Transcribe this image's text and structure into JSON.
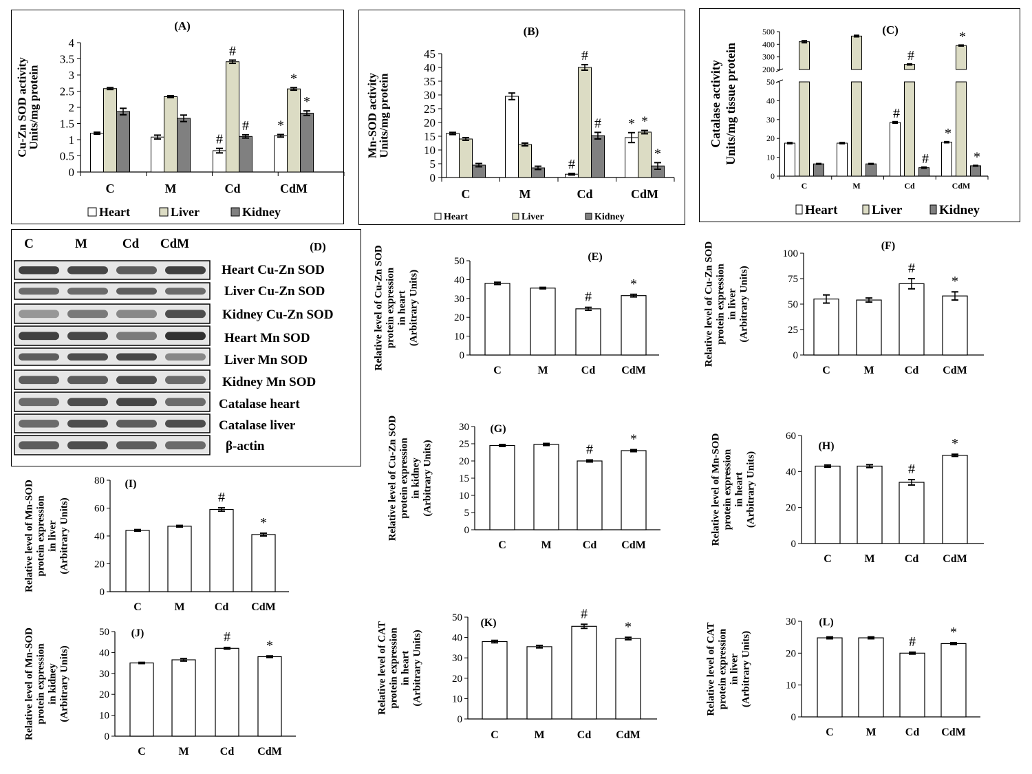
{
  "figure": {
    "group_labels": [
      "C",
      "M",
      "Cd",
      "CdM"
    ],
    "blot": {
      "panel_label": "(D)",
      "lane_labels": [
        "C",
        "M",
        "Cd",
        "CdM"
      ],
      "bands": [
        "Heart Cu-Zn SOD",
        "Liver Cu-Zn SOD",
        "Kidney Cu-Zn SOD",
        "Heart Mn SOD",
        "Liver Mn SOD",
        "Kidney Mn SOD",
        "Catalase heart",
        "Catalase liver",
        "β-actin"
      ]
    }
  },
  "chart_data": [
    {
      "id": "A",
      "panel_label": "(A)",
      "type": "bar",
      "ylabel_lines": [
        "Cu-Zn SOD activity",
        "Units/mg protein"
      ],
      "categories": [
        "C",
        "M",
        "Cd",
        "CdM"
      ],
      "ylim": [
        0,
        4
      ],
      "yticks": [
        "0",
        "0.5",
        "1",
        "1.5",
        "2",
        "2.5",
        "3",
        "3.5",
        "4"
      ],
      "grid": false,
      "legend": "bottom",
      "series": [
        {
          "name": "Heart",
          "color": "#ffffff",
          "values": [
            1.2,
            1.08,
            0.66,
            1.12
          ],
          "errors": [
            0.03,
            0.06,
            0.07,
            0.04
          ],
          "marks": [
            "",
            "",
            "#",
            "*"
          ]
        },
        {
          "name": "Liver",
          "color": "#dcdcc4",
          "values": [
            2.58,
            2.33,
            3.41,
            2.57
          ],
          "errors": [
            0.03,
            0.03,
            0.05,
            0.04
          ],
          "marks": [
            "",
            "",
            "#",
            "*"
          ]
        },
        {
          "name": "Kidney",
          "color": "#808080",
          "values": [
            1.87,
            1.66,
            1.1,
            1.82
          ],
          "errors": [
            0.1,
            0.1,
            0.05,
            0.07
          ],
          "marks": [
            "",
            "",
            "#",
            "*"
          ]
        }
      ]
    },
    {
      "id": "B",
      "panel_label": "(B)",
      "type": "bar",
      "ylabel_lines": [
        "Mn-SOD activity",
        "Units/mg protein"
      ],
      "categories": [
        "C",
        "M",
        "Cd",
        "CdM"
      ],
      "ylim": [
        0,
        45
      ],
      "yticks": [
        "0",
        "5",
        "10",
        "15",
        "20",
        "25",
        "30",
        "35",
        "40",
        "45"
      ],
      "grid": false,
      "legend": "bottom",
      "series": [
        {
          "name": "Heart",
          "color": "#ffffff",
          "values": [
            16,
            29.5,
            1.2,
            14.5
          ],
          "errors": [
            0.4,
            1.2,
            0.3,
            1.8
          ],
          "marks": [
            "",
            "",
            "#",
            "*"
          ]
        },
        {
          "name": "Liver",
          "color": "#dcdcc4",
          "values": [
            14,
            12,
            40,
            16.5
          ],
          "errors": [
            0.5,
            0.5,
            1.0,
            0.6
          ],
          "marks": [
            "",
            "",
            "#",
            "*"
          ]
        },
        {
          "name": "Kidney",
          "color": "#808080",
          "values": [
            4.5,
            3.5,
            15.2,
            4.2
          ],
          "errors": [
            0.6,
            0.6,
            1.2,
            1.2
          ],
          "marks": [
            "",
            "",
            "#",
            "*"
          ]
        }
      ]
    },
    {
      "id": "C",
      "panel_label": "(C)",
      "type": "bar",
      "ylabel_lines": [
        "Catalase activity",
        "Units/mg tissue protein"
      ],
      "categories": [
        "C",
        "M",
        "Cd",
        "CdM"
      ],
      "ylim": [
        0,
        500
      ],
      "broken_axis": {
        "lower": [
          0,
          50
        ],
        "upper": [
          200,
          500
        ]
      },
      "yticks_lower": [
        "0",
        "10",
        "20",
        "30",
        "40",
        "50"
      ],
      "yticks_upper": [
        "200",
        "300",
        "400",
        "500"
      ],
      "grid": false,
      "legend": "bottom",
      "series": [
        {
          "name": "Heart",
          "color": "#ffffff",
          "values": [
            17.5,
            17.5,
            28.5,
            18
          ],
          "errors": [
            0.3,
            0.3,
            0.4,
            0.3
          ],
          "marks": [
            "",
            "",
            "#",
            "*"
          ]
        },
        {
          "name": "Liver",
          "color": "#dcdcc4",
          "values": [
            420,
            465,
            240,
            390
          ],
          "errors": [
            8,
            6,
            4,
            4
          ],
          "marks": [
            "",
            "",
            "#",
            "*"
          ]
        },
        {
          "name": "Kidney",
          "color": "#808080",
          "values": [
            6.5,
            6.5,
            4.5,
            5.5
          ],
          "errors": [
            0.2,
            0.2,
            0.3,
            0.2
          ],
          "marks": [
            "",
            "",
            "#",
            "*"
          ]
        }
      ]
    },
    {
      "id": "E",
      "panel_label": "(E)",
      "type": "bar",
      "ylabel_lines": [
        "Relative level of Cu-Zn SOD",
        "protein expression",
        "in heart",
        "(Arbitrary Units)"
      ],
      "categories": [
        "C",
        "M",
        "Cd",
        "CdM"
      ],
      "ylim": [
        0,
        50
      ],
      "yticks": [
        "0",
        "10",
        "20",
        "30",
        "40",
        "50"
      ],
      "grid": false,
      "values": [
        38,
        35.5,
        24.5,
        31.5
      ],
      "errors": [
        0.6,
        0.4,
        0.8,
        0.7
      ],
      "marks": [
        "",
        "",
        "#",
        "*"
      ]
    },
    {
      "id": "F",
      "panel_label": "(F)",
      "type": "bar",
      "ylabel_lines": [
        "Relative level of Cu-Zn SOD",
        "protein expression",
        "in liver",
        "(Arbitrary Units)"
      ],
      "categories": [
        "C",
        "M",
        "Cd",
        "CdM"
      ],
      "ylim": [
        0,
        100
      ],
      "yticks": [
        "0",
        "25",
        "50",
        "75",
        "100"
      ],
      "grid": false,
      "values": [
        55,
        54,
        70,
        58
      ],
      "errors": [
        4,
        2,
        5,
        4
      ],
      "marks": [
        "",
        "",
        "#",
        "*"
      ]
    },
    {
      "id": "G",
      "panel_label": "(G)",
      "type": "bar",
      "ylabel_lines": [
        "Relative level of Cu-Zn SOD",
        "protein expression",
        "in kidney",
        "(Arbitrary Units)"
      ],
      "categories": [
        "C",
        "M",
        "Cd",
        "CdM"
      ],
      "ylim": [
        0,
        30
      ],
      "yticks": [
        "0",
        "5",
        "10",
        "15",
        "20",
        "25",
        "30"
      ],
      "grid": false,
      "values": [
        24.5,
        24.8,
        20,
        23
      ],
      "errors": [
        0.3,
        0.3,
        0.3,
        0.3
      ],
      "marks": [
        "",
        "",
        "#",
        "*"
      ]
    },
    {
      "id": "H",
      "panel_label": "(H)",
      "type": "bar",
      "ylabel_lines": [
        "Relative level of Mn-SOD",
        "protein expression",
        "in heart",
        "(Arbitrary Units)"
      ],
      "categories": [
        "C",
        "M",
        "Cd",
        "CdM"
      ],
      "ylim": [
        0,
        60
      ],
      "yticks": [
        "0",
        "20",
        "40",
        "60"
      ],
      "grid": false,
      "values": [
        43,
        43,
        34,
        49
      ],
      "errors": [
        0.6,
        0.8,
        1.5,
        0.6
      ],
      "marks": [
        "",
        "",
        "#",
        "*"
      ]
    },
    {
      "id": "I",
      "panel_label": "(I)",
      "type": "bar",
      "ylabel_lines": [
        "Relative level of Mn-SOD",
        "protein expression",
        "in liver",
        "(Arbitrary Units)"
      ],
      "categories": [
        "C",
        "M",
        "Cd",
        "CdM"
      ],
      "ylim": [
        0,
        80
      ],
      "yticks": [
        "0",
        "20",
        "40",
        "60",
        "80"
      ],
      "grid": false,
      "values": [
        44,
        47,
        59,
        41
      ],
      "errors": [
        0.6,
        0.6,
        1.2,
        1.0
      ],
      "marks": [
        "",
        "",
        "#",
        "*"
      ]
    },
    {
      "id": "J",
      "panel_label": "(J)",
      "type": "bar",
      "ylabel_lines": [
        "Relative level of Mn-SOD",
        "protein expression",
        "in kidney",
        "(Arbitrary Units)"
      ],
      "categories": [
        "C",
        "M",
        "Cd",
        "CdM"
      ],
      "ylim": [
        0,
        50
      ],
      "yticks": [
        "0",
        "10",
        "20",
        "30",
        "40",
        "50"
      ],
      "grid": false,
      "values": [
        35,
        36.5,
        42,
        38
      ],
      "errors": [
        0.3,
        0.6,
        0.4,
        0.4
      ],
      "marks": [
        "",
        "",
        "#",
        "*"
      ]
    },
    {
      "id": "K",
      "panel_label": "(K)",
      "type": "bar",
      "ylabel_lines": [
        "Relative level of CAT",
        "protein expression",
        "in heart",
        "(Arbitrary Units)"
      ],
      "categories": [
        "C",
        "M",
        "Cd",
        "CdM"
      ],
      "ylim": [
        0,
        50
      ],
      "yticks": [
        "0",
        "10",
        "20",
        "30",
        "40",
        "50"
      ],
      "grid": false,
      "values": [
        38,
        35.5,
        45.5,
        39.5
      ],
      "errors": [
        0.6,
        0.6,
        1.0,
        0.6
      ],
      "marks": [
        "",
        "",
        "#",
        "*"
      ]
    },
    {
      "id": "L",
      "panel_label": "(L)",
      "type": "bar",
      "ylabel_lines": [
        "Relative level of CAT",
        "protein expression",
        "in liver",
        "(Arbitrary Units)"
      ],
      "categories": [
        "C",
        "M",
        "Cd",
        "CdM"
      ],
      "ylim": [
        0,
        30
      ],
      "yticks": [
        "0",
        "10",
        "20",
        "30"
      ],
      "grid": false,
      "values": [
        24.8,
        24.8,
        20,
        23
      ],
      "errors": [
        0.3,
        0.3,
        0.3,
        0.3
      ],
      "marks": [
        "",
        "",
        "#",
        "*"
      ]
    }
  ]
}
